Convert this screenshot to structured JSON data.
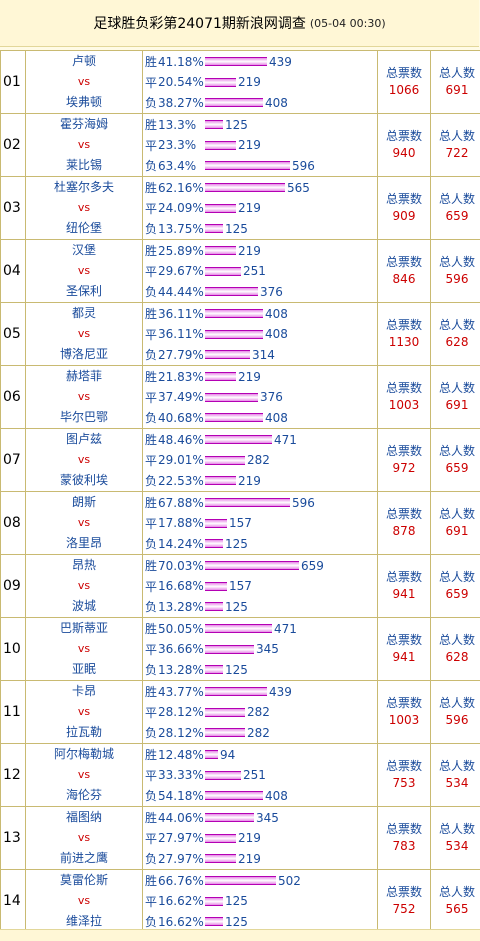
{
  "header": {
    "title": "足球胜负彩第24071期新浪网调查",
    "timestamp": "(05-04 00:30)"
  },
  "labels": {
    "win": "胜",
    "draw": "平",
    "loss": "负",
    "vs": "vs",
    "total_votes": "总票数",
    "total_people": "总人数"
  },
  "colors": {
    "team": "#1a4b9b",
    "vs": "#cc0000",
    "count": "#cc0000",
    "bar": "#e68ae6"
  },
  "matches": [
    {
      "no": "01",
      "home": "卢顿",
      "away": "埃弗顿",
      "win": {
        "pct": "41.18%",
        "votes": 439
      },
      "draw": {
        "pct": "20.54%",
        "votes": 219
      },
      "loss": {
        "pct": "38.27%",
        "votes": 408
      },
      "total_votes": "1066",
      "total_people": "691"
    },
    {
      "no": "02",
      "home": "霍芬海姆",
      "away": "莱比锡",
      "win": {
        "pct": "13.3%",
        "votes": 125
      },
      "draw": {
        "pct": "23.3%",
        "votes": 219
      },
      "loss": {
        "pct": "63.4%",
        "votes": 596
      },
      "total_votes": "940",
      "total_people": "722"
    },
    {
      "no": "03",
      "home": "杜塞尔多夫",
      "away": "纽伦堡",
      "win": {
        "pct": "62.16%",
        "votes": 565
      },
      "draw": {
        "pct": "24.09%",
        "votes": 219
      },
      "loss": {
        "pct": "13.75%",
        "votes": 125
      },
      "total_votes": "909",
      "total_people": "659"
    },
    {
      "no": "04",
      "home": "汉堡",
      "away": "圣保利",
      "win": {
        "pct": "25.89%",
        "votes": 219
      },
      "draw": {
        "pct": "29.67%",
        "votes": 251
      },
      "loss": {
        "pct": "44.44%",
        "votes": 376
      },
      "total_votes": "846",
      "total_people": "596"
    },
    {
      "no": "05",
      "home": "都灵",
      "away": "博洛尼亚",
      "win": {
        "pct": "36.11%",
        "votes": 408
      },
      "draw": {
        "pct": "36.11%",
        "votes": 408
      },
      "loss": {
        "pct": "27.79%",
        "votes": 314
      },
      "total_votes": "1130",
      "total_people": "628"
    },
    {
      "no": "06",
      "home": "赫塔菲",
      "away": "毕尔巴鄂",
      "win": {
        "pct": "21.83%",
        "votes": 219
      },
      "draw": {
        "pct": "37.49%",
        "votes": 376
      },
      "loss": {
        "pct": "40.68%",
        "votes": 408
      },
      "total_votes": "1003",
      "total_people": "691"
    },
    {
      "no": "07",
      "home": "图卢兹",
      "away": "蒙彼利埃",
      "win": {
        "pct": "48.46%",
        "votes": 471
      },
      "draw": {
        "pct": "29.01%",
        "votes": 282
      },
      "loss": {
        "pct": "22.53%",
        "votes": 219
      },
      "total_votes": "972",
      "total_people": "659"
    },
    {
      "no": "08",
      "home": "朗斯",
      "away": "洛里昂",
      "win": {
        "pct": "67.88%",
        "votes": 596
      },
      "draw": {
        "pct": "17.88%",
        "votes": 157
      },
      "loss": {
        "pct": "14.24%",
        "votes": 125
      },
      "total_votes": "878",
      "total_people": "691"
    },
    {
      "no": "09",
      "home": "昂热",
      "away": "波城",
      "win": {
        "pct": "70.03%",
        "votes": 659
      },
      "draw": {
        "pct": "16.68%",
        "votes": 157
      },
      "loss": {
        "pct": "13.28%",
        "votes": 125
      },
      "total_votes": "941",
      "total_people": "659"
    },
    {
      "no": "10",
      "home": "巴斯蒂亚",
      "away": "亚眠",
      "win": {
        "pct": "50.05%",
        "votes": 471
      },
      "draw": {
        "pct": "36.66%",
        "votes": 345
      },
      "loss": {
        "pct": "13.28%",
        "votes": 125
      },
      "total_votes": "941",
      "total_people": "628"
    },
    {
      "no": "11",
      "home": "卡昂",
      "away": "拉瓦勒",
      "win": {
        "pct": "43.77%",
        "votes": 439
      },
      "draw": {
        "pct": "28.12%",
        "votes": 282
      },
      "loss": {
        "pct": "28.12%",
        "votes": 282
      },
      "total_votes": "1003",
      "total_people": "596"
    },
    {
      "no": "12",
      "home": "阿尔梅勒城",
      "away": "海伦芬",
      "win": {
        "pct": "12.48%",
        "votes": 94
      },
      "draw": {
        "pct": "33.33%",
        "votes": 251
      },
      "loss": {
        "pct": "54.18%",
        "votes": 408
      },
      "total_votes": "753",
      "total_people": "534"
    },
    {
      "no": "13",
      "home": "福图纳",
      "away": "前进之鹰",
      "win": {
        "pct": "44.06%",
        "votes": 345
      },
      "draw": {
        "pct": "27.97%",
        "votes": 219
      },
      "loss": {
        "pct": "27.97%",
        "votes": 219
      },
      "total_votes": "783",
      "total_people": "534"
    },
    {
      "no": "14",
      "home": "莫雷伦斯",
      "away": "维泽拉",
      "win": {
        "pct": "66.76%",
        "votes": 502
      },
      "draw": {
        "pct": "16.62%",
        "votes": 125
      },
      "loss": {
        "pct": "16.62%",
        "votes": 125
      },
      "total_votes": "752",
      "total_people": "565"
    }
  ]
}
